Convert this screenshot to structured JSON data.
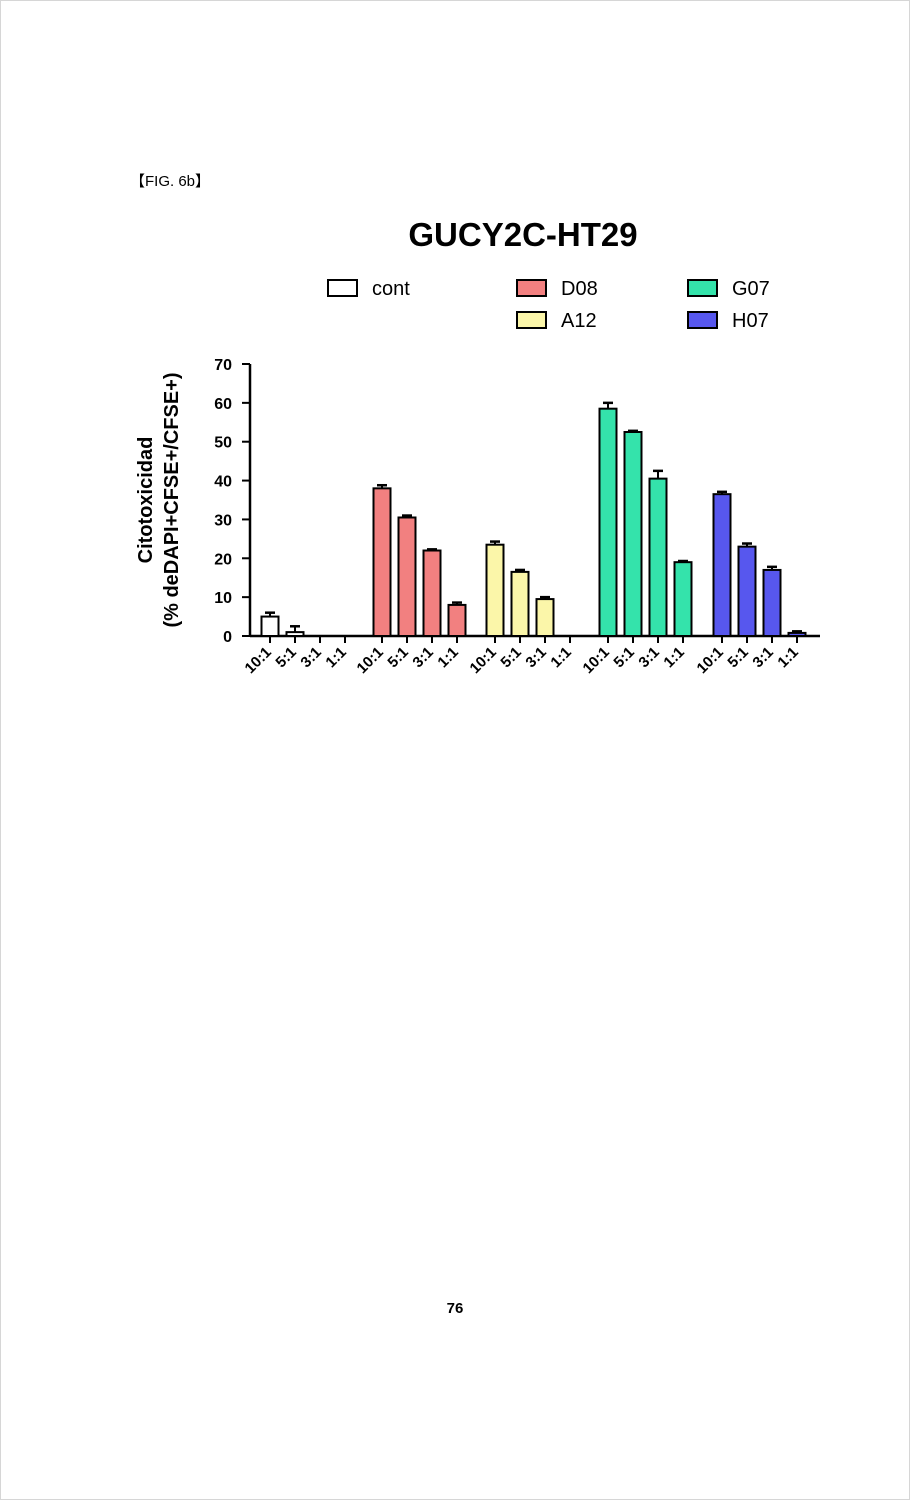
{
  "figure_label": "【FIG. 6b】",
  "page_number": "76",
  "colors": {
    "cont": "#ffffff",
    "D08": "#f28080",
    "A12": "#fbf6a9",
    "G07": "#34e3ab",
    "H07": "#5757ee"
  },
  "chart_data": {
    "type": "bar",
    "title": "GUCY2C-HT29",
    "ylabel_line1": "Citotoxicidad",
    "ylabel_line2": "(% deDAPI+CFSE+/CFSE+)",
    "xlabel": "",
    "ylim": [
      0,
      70
    ],
    "yticks": [
      0,
      10,
      20,
      30,
      40,
      50,
      60,
      70
    ],
    "ratios": [
      "10:1",
      "5:1",
      "3:1",
      "1:1"
    ],
    "legend_layout": "top, three columns",
    "series": [
      {
        "name": "cont",
        "values": [
          5.0,
          1.0,
          0,
          0
        ],
        "errors": [
          1.0,
          1.5,
          0,
          0
        ]
      },
      {
        "name": "D08",
        "values": [
          38.0,
          30.5,
          22.0,
          8.0
        ],
        "errors": [
          0.8,
          0.5,
          0.3,
          0.6
        ]
      },
      {
        "name": "A12",
        "values": [
          23.5,
          16.5,
          9.5,
          null
        ],
        "errors": [
          0.8,
          0.5,
          0.5,
          null
        ]
      },
      {
        "name": "G07",
        "values": [
          58.5,
          52.5,
          40.5,
          19.0
        ],
        "errors": [
          1.5,
          0.3,
          2.0,
          0.3
        ]
      },
      {
        "name": "H07",
        "values": [
          36.5,
          23.0,
          17.0,
          0.8
        ],
        "errors": [
          0.6,
          0.8,
          0.8,
          0.4
        ]
      }
    ]
  }
}
